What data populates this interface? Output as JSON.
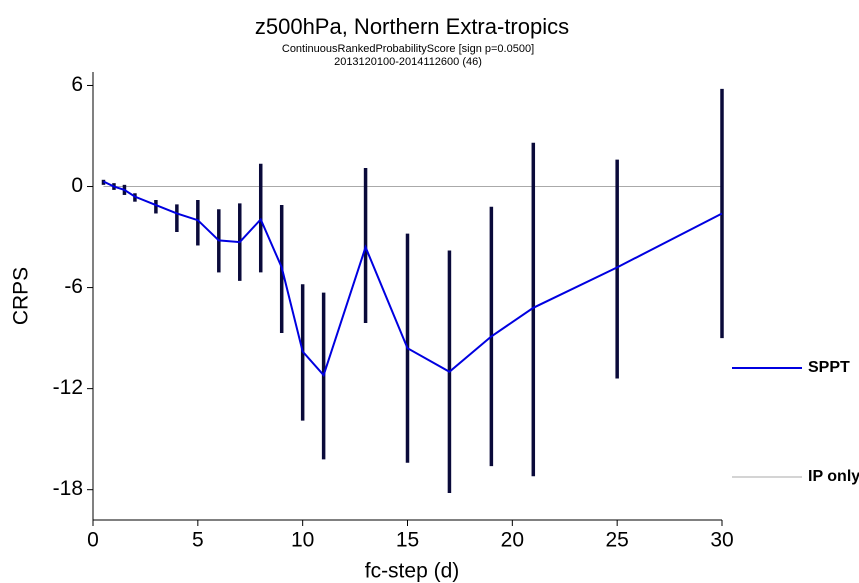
{
  "chart_data": {
    "type": "line",
    "title": "z500hPa,  Northern Extra-tropics",
    "subtitle": "ContinuousRankedProbabilityScore [sign p=0.0500]",
    "subtitle2": "2013120100-2014112600 (46)",
    "x_label": "fc-step (d)",
    "y_label": "CRPS",
    "x": [
      0.5,
      1,
      1.5,
      2,
      3,
      4,
      5,
      6,
      7,
      8,
      9,
      10,
      11,
      13,
      15,
      17,
      19,
      21,
      25,
      30
    ],
    "series": [
      {
        "name": "SPPT",
        "color": "#0000e0",
        "values": [
          0.3,
          0.0,
          -0.2,
          -0.6,
          -1.1,
          -1.6,
          -2.0,
          -3.2,
          -3.3,
          -1.95,
          -4.8,
          -9.8,
          -11.2,
          -3.6,
          -9.6,
          -11.0,
          -8.9,
          -7.2,
          -4.8,
          -1.6
        ],
        "ci_low": [
          0.1,
          -0.2,
          -0.5,
          -0.9,
          -1.6,
          -2.7,
          -3.5,
          -5.1,
          -5.6,
          -5.1,
          -8.7,
          -13.9,
          -16.2,
          -8.1,
          -16.4,
          -18.2,
          -16.6,
          -17.2,
          -11.4,
          -9.0
        ],
        "ci_high": [
          0.4,
          0.2,
          0.1,
          -0.4,
          -0.8,
          -1.06,
          -0.8,
          -1.35,
          -1.0,
          1.35,
          -1.1,
          -5.8,
          -6.3,
          1.1,
          -2.8,
          -3.8,
          -1.2,
          2.6,
          1.6,
          5.8
        ]
      },
      {
        "name": "IP only",
        "color": "#aaaaaa",
        "values": [
          0,
          0,
          0,
          0,
          0,
          0,
          0,
          0,
          0,
          0,
          0,
          0,
          0,
          0,
          0,
          0,
          0,
          0,
          0,
          0
        ]
      }
    ],
    "ci_color": "#0a0a3a",
    "xlim": [
      0,
      30
    ],
    "xticks": [
      0,
      5,
      10,
      15,
      20,
      25,
      30
    ],
    "ylim": [
      -19.8,
      6.8
    ],
    "yticks": [
      6,
      0,
      -6,
      -12,
      -18
    ],
    "legend": "right"
  }
}
